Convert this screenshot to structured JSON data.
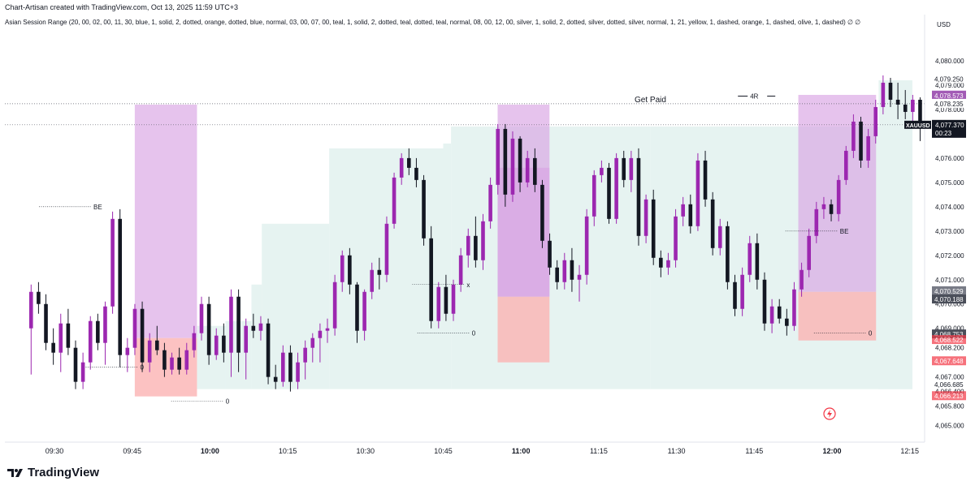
{
  "header": {
    "credit": "Chart-Artisan created with TradingView.com, Oct 13, 2025 11:59 UTC+3"
  },
  "indicator": {
    "text": "Asian Session Range (20, 00, 02, 00, 11, 30, blue, 1, solid, 2, dotted, orange, dotted, blue, normal, 03, 00, 07, 00, teal, 1, solid, 2, dotted, teal, dotted, teal, normal, 08, 00, 12, 00, silver, 1, solid, 2, dotted, silver, dotted, silver, normal, 1, 21, yellow, 1, dashed, orange, 1, dashed, olive, 1, dashed)",
    "icons": "∅ ∅"
  },
  "footer": {
    "brand": "TradingView"
  },
  "colors": {
    "bull": "#9c27b0",
    "bear": "#131722",
    "teal_zone": "#e6f3f1",
    "purple_zone": "#d9a3e3",
    "red_zone": "#fbb3b3",
    "price_tag": "#131722",
    "level_tag": "#f23645",
    "mid_tag": "#a25bb5"
  },
  "chart_data": {
    "type": "candlestick",
    "symbol": "XAUUSD",
    "currency": "USD",
    "countdown": "00:23",
    "x_tick_labels": [
      "09:30",
      "09:45",
      "10:00",
      "10:15",
      "10:30",
      "10:45",
      "11:00",
      "11:15",
      "11:30",
      "11:45",
      "12:00",
      "12:15"
    ],
    "y_tick_labels": [
      "4,080.000",
      "4,079.000",
      "4,078.000",
      "4,076.000",
      "4,075.000",
      "4,074.000",
      "4,073.000",
      "4,072.000",
      "4,071.000",
      "4,070.000",
      "4,069.000",
      "4,068.200",
      "4,067.000",
      "4,066.400",
      "4,065.800",
      "4,065.000"
    ],
    "y_range": [
      4064.6,
      4081.0
    ],
    "x_range_minutes": [
      565,
      740
    ],
    "last_price": 4077.37,
    "price_tags": [
      {
        "label": "4,079.250",
        "price": 4079.25,
        "style": "plain"
      },
      {
        "label": "4,078.573",
        "price": 4078.573,
        "style": "mid"
      },
      {
        "label": "4,078.235",
        "price": 4078.235,
        "style": "plain"
      },
      {
        "label": "4,070.529",
        "price": 4070.529,
        "style": "gray"
      },
      {
        "label": "4,070.188",
        "price": 4070.188,
        "style": "dark"
      },
      {
        "label": "4,068.753",
        "price": 4068.753,
        "style": "dark"
      },
      {
        "label": "4,068.522",
        "price": 4068.522,
        "style": "red"
      },
      {
        "label": "4,067.648",
        "price": 4067.648,
        "style": "red"
      },
      {
        "label": "4,066.685",
        "price": 4066.685,
        "style": "plain"
      },
      {
        "label": "4,066.213",
        "price": 4066.213,
        "style": "red"
      }
    ],
    "h_lines": [
      {
        "price": 4078.235,
        "label": "Get Paid"
      },
      {
        "price": 4077.37,
        "label": ""
      }
    ],
    "annotations": [
      {
        "label": "BE",
        "t": 578,
        "price": 4074.0
      },
      {
        "label": "0",
        "t": 587,
        "price": 4067.4
      },
      {
        "label": "0",
        "t": 603.5,
        "price": 4066.0
      },
      {
        "label": "x",
        "t": 650,
        "price": 4070.8
      },
      {
        "label": "0",
        "t": 651,
        "price": 4068.8
      },
      {
        "label": "BE",
        "t": 722,
        "price": 4073.0
      },
      {
        "label": "0",
        "t": 727.5,
        "price": 4068.8
      },
      {
        "label": "4R",
        "t": 710,
        "price": 4078.55
      }
    ],
    "zones": [
      {
        "kind": "purple",
        "t0": 585.5,
        "t1": 597.5,
        "p0": 4068.6,
        "p1": 4078.2
      },
      {
        "kind": "red",
        "t0": 585.5,
        "t1": 597.5,
        "p0": 4066.2,
        "p1": 4068.6
      },
      {
        "kind": "purple",
        "t0": 655.5,
        "t1": 665.5,
        "p0": 4070.3,
        "p1": 4078.2
      },
      {
        "kind": "purple",
        "t0": 655.5,
        "t1": 665.5,
        "p0": 4070.3,
        "p1": 4075.6
      },
      {
        "kind": "red",
        "t0": 655.5,
        "t1": 665.5,
        "p0": 4067.6,
        "p1": 4070.3
      },
      {
        "kind": "purple",
        "t0": 713.5,
        "t1": 728.5,
        "p0": 4070.5,
        "p1": 4078.6
      },
      {
        "kind": "red",
        "t0": 713.5,
        "t1": 728.5,
        "p0": 4068.5,
        "p1": 4070.5
      }
    ],
    "teal_steps": [
      {
        "t0": 597.5,
        "t1": 603,
        "top": 4069.1
      },
      {
        "t0": 603,
        "t1": 608,
        "top": 4069.3
      },
      {
        "t0": 608,
        "t1": 610,
        "top": 4070.8
      },
      {
        "t0": 610,
        "t1": 623,
        "top": 4073.3
      },
      {
        "t0": 623,
        "t1": 645,
        "top": 4076.4
      },
      {
        "t0": 645,
        "t1": 646.5,
        "top": 4076.6
      },
      {
        "t0": 646.5,
        "t1": 685,
        "top": 4077.3
      },
      {
        "t0": 685,
        "t1": 735.5,
        "top": 4077.3
      },
      {
        "t0": 729,
        "t1": 735.5,
        "top": 4079.2
      }
    ],
    "teal_bottom": 4066.5,
    "candles": [
      {
        "o": 4069.0,
        "h": 4070.8,
        "l": 4067.1,
        "c": 4070.5
      },
      {
        "o": 4070.5,
        "h": 4070.9,
        "l": 4069.6,
        "c": 4070.0
      },
      {
        "o": 4070.0,
        "h": 4070.4,
        "l": 4068.1,
        "c": 4068.4
      },
      {
        "o": 4068.4,
        "h": 4069.0,
        "l": 4067.5,
        "c": 4068.0
      },
      {
        "o": 4068.0,
        "h": 4069.6,
        "l": 4067.2,
        "c": 4069.2
      },
      {
        "o": 4069.2,
        "h": 4069.8,
        "l": 4067.9,
        "c": 4068.2
      },
      {
        "o": 4068.2,
        "h": 4068.5,
        "l": 4066.5,
        "c": 4066.8
      },
      {
        "o": 4066.8,
        "h": 4068.0,
        "l": 4066.5,
        "c": 4067.6
      },
      {
        "o": 4067.6,
        "h": 4069.5,
        "l": 4067.3,
        "c": 4069.3
      },
      {
        "o": 4069.3,
        "h": 4069.6,
        "l": 4068.1,
        "c": 4068.4
      },
      {
        "o": 4068.4,
        "h": 4070.1,
        "l": 4067.5,
        "c": 4069.9
      },
      {
        "o": 4069.9,
        "h": 4073.8,
        "l": 4069.6,
        "c": 4073.5
      },
      {
        "o": 4073.5,
        "h": 4073.9,
        "l": 4067.4,
        "c": 4067.9
      },
      {
        "o": 4067.9,
        "h": 4068.6,
        "l": 4067.2,
        "c": 4068.2
      },
      {
        "o": 4068.2,
        "h": 4070.0,
        "l": 4067.9,
        "c": 4069.8
      },
      {
        "o": 4069.8,
        "h": 4070.1,
        "l": 4067.2,
        "c": 4067.6
      },
      {
        "o": 4067.6,
        "h": 4068.8,
        "l": 4067.2,
        "c": 4068.5
      },
      {
        "o": 4068.5,
        "h": 4069.1,
        "l": 4067.9,
        "c": 4068.1
      },
      {
        "o": 4068.1,
        "h": 4068.4,
        "l": 4067.0,
        "c": 4067.3
      },
      {
        "o": 4067.3,
        "h": 4068.0,
        "l": 4067.1,
        "c": 4067.8
      },
      {
        "o": 4067.8,
        "h": 4068.2,
        "l": 4067.1,
        "c": 4067.3
      },
      {
        "o": 4067.3,
        "h": 4068.4,
        "l": 4067.1,
        "c": 4068.1
      },
      {
        "o": 4068.1,
        "h": 4069.1,
        "l": 4067.8,
        "c": 4068.8
      },
      {
        "o": 4068.8,
        "h": 4070.3,
        "l": 4068.5,
        "c": 4070.0
      },
      {
        "o": 4070.0,
        "h": 4070.3,
        "l": 4067.5,
        "c": 4067.9
      },
      {
        "o": 4067.9,
        "h": 4069.0,
        "l": 4067.7,
        "c": 4068.7
      },
      {
        "o": 4068.7,
        "h": 4069.2,
        "l": 4067.6,
        "c": 4068.0
      },
      {
        "o": 4068.0,
        "h": 4070.6,
        "l": 4067.0,
        "c": 4070.3
      },
      {
        "o": 4070.3,
        "h": 4070.6,
        "l": 4067.2,
        "c": 4068.0
      },
      {
        "o": 4068.0,
        "h": 4069.4,
        "l": 4066.9,
        "c": 4069.1
      },
      {
        "o": 4069.1,
        "h": 4069.6,
        "l": 4068.6,
        "c": 4068.9
      },
      {
        "o": 4068.9,
        "h": 4069.5,
        "l": 4068.5,
        "c": 4069.2
      },
      {
        "o": 4069.2,
        "h": 4069.4,
        "l": 4066.7,
        "c": 4067.0
      },
      {
        "o": 4067.0,
        "h": 4067.5,
        "l": 4066.5,
        "c": 4066.8
      },
      {
        "o": 4066.8,
        "h": 4068.3,
        "l": 4066.6,
        "c": 4068.0
      },
      {
        "o": 4068.0,
        "h": 4068.3,
        "l": 4066.4,
        "c": 4066.8
      },
      {
        "o": 4066.8,
        "h": 4068.0,
        "l": 4066.5,
        "c": 4067.6
      },
      {
        "o": 4067.6,
        "h": 4068.5,
        "l": 4066.9,
        "c": 4068.2
      },
      {
        "o": 4068.2,
        "h": 4068.8,
        "l": 4067.6,
        "c": 4068.6
      },
      {
        "o": 4068.6,
        "h": 4069.2,
        "l": 4067.6,
        "c": 4068.9
      },
      {
        "o": 4068.9,
        "h": 4069.4,
        "l": 4068.4,
        "c": 4069.0
      },
      {
        "o": 4069.0,
        "h": 4071.2,
        "l": 4068.7,
        "c": 4070.9
      },
      {
        "o": 4070.9,
        "h": 4072.2,
        "l": 4070.5,
        "c": 4072.0
      },
      {
        "o": 4072.0,
        "h": 4072.3,
        "l": 4070.4,
        "c": 4070.8
      },
      {
        "o": 4070.8,
        "h": 4070.9,
        "l": 4068.4,
        "c": 4068.9
      },
      {
        "o": 4068.9,
        "h": 4070.6,
        "l": 4068.5,
        "c": 4070.5
      },
      {
        "o": 4070.5,
        "h": 4071.7,
        "l": 4070.2,
        "c": 4071.4
      },
      {
        "o": 4071.4,
        "h": 4071.9,
        "l": 4070.6,
        "c": 4071.2
      },
      {
        "o": 4071.2,
        "h": 4073.6,
        "l": 4070.9,
        "c": 4073.3
      },
      {
        "o": 4073.3,
        "h": 4075.4,
        "l": 4073.1,
        "c": 4075.2
      },
      {
        "o": 4075.2,
        "h": 4076.2,
        "l": 4074.9,
        "c": 4076.0
      },
      {
        "o": 4076.0,
        "h": 4076.4,
        "l": 4075.3,
        "c": 4075.6
      },
      {
        "o": 4075.6,
        "h": 4076.0,
        "l": 4074.8,
        "c": 4075.1
      },
      {
        "o": 4075.1,
        "h": 4075.3,
        "l": 4072.4,
        "c": 4072.7
      },
      {
        "o": 4072.7,
        "h": 4073.2,
        "l": 4069.0,
        "c": 4069.3
      },
      {
        "o": 4069.3,
        "h": 4070.9,
        "l": 4069.0,
        "c": 4070.7
      },
      {
        "o": 4070.7,
        "h": 4071.2,
        "l": 4069.3,
        "c": 4069.6
      },
      {
        "o": 4069.6,
        "h": 4071.0,
        "l": 4069.3,
        "c": 4070.8
      },
      {
        "o": 4070.8,
        "h": 4072.3,
        "l": 4070.5,
        "c": 4072.0
      },
      {
        "o": 4072.0,
        "h": 4073.1,
        "l": 4071.5,
        "c": 4072.8
      },
      {
        "o": 4072.8,
        "h": 4073.6,
        "l": 4071.5,
        "c": 4071.8
      },
      {
        "o": 4071.8,
        "h": 4073.7,
        "l": 4071.4,
        "c": 4073.4
      },
      {
        "o": 4073.4,
        "h": 4075.2,
        "l": 4073.1,
        "c": 4074.9
      },
      {
        "o": 4074.9,
        "h": 4077.4,
        "l": 4074.5,
        "c": 4077.2
      },
      {
        "o": 4077.2,
        "h": 4077.4,
        "l": 4074.0,
        "c": 4074.5
      },
      {
        "o": 4074.5,
        "h": 4077.1,
        "l": 4074.2,
        "c": 4076.8
      },
      {
        "o": 4076.8,
        "h": 4076.9,
        "l": 4074.6,
        "c": 4075.0
      },
      {
        "o": 4075.0,
        "h": 4076.3,
        "l": 4074.8,
        "c": 4076.0
      },
      {
        "o": 4076.0,
        "h": 4076.4,
        "l": 4074.6,
        "c": 4074.9
      },
      {
        "o": 4074.9,
        "h": 4075.1,
        "l": 4072.3,
        "c": 4072.6
      },
      {
        "o": 4072.6,
        "h": 4072.9,
        "l": 4071.2,
        "c": 4071.5
      },
      {
        "o": 4071.5,
        "h": 4071.8,
        "l": 4070.6,
        "c": 4070.9
      },
      {
        "o": 4070.9,
        "h": 4072.1,
        "l": 4070.6,
        "c": 4071.8
      },
      {
        "o": 4071.8,
        "h": 4072.3,
        "l": 4070.5,
        "c": 4071.0
      },
      {
        "o": 4071.0,
        "h": 4071.6,
        "l": 4070.1,
        "c": 4071.2
      },
      {
        "o": 4071.2,
        "h": 4073.9,
        "l": 4070.8,
        "c": 4073.6
      },
      {
        "o": 4073.6,
        "h": 4075.5,
        "l": 4073.2,
        "c": 4075.3
      },
      {
        "o": 4075.3,
        "h": 4075.9,
        "l": 4075.0,
        "c": 4075.6
      },
      {
        "o": 4075.6,
        "h": 4075.8,
        "l": 4073.3,
        "c": 4073.5
      },
      {
        "o": 4073.5,
        "h": 4076.2,
        "l": 4073.3,
        "c": 4076.0
      },
      {
        "o": 4076.0,
        "h": 4076.3,
        "l": 4074.8,
        "c": 4075.1
      },
      {
        "o": 4075.1,
        "h": 4076.3,
        "l": 4074.6,
        "c": 4076.0
      },
      {
        "o": 4076.0,
        "h": 4076.4,
        "l": 4072.4,
        "c": 4072.8
      },
      {
        "o": 4072.8,
        "h": 4074.5,
        "l": 4072.5,
        "c": 4074.3
      },
      {
        "o": 4074.3,
        "h": 4074.7,
        "l": 4071.6,
        "c": 4071.9
      },
      {
        "o": 4071.9,
        "h": 4072.2,
        "l": 4071.1,
        "c": 4071.5
      },
      {
        "o": 4071.5,
        "h": 4072.1,
        "l": 4071.2,
        "c": 4071.8
      },
      {
        "o": 4071.8,
        "h": 4073.9,
        "l": 4071.5,
        "c": 4073.6
      },
      {
        "o": 4073.6,
        "h": 4074.4,
        "l": 4073.2,
        "c": 4074.1
      },
      {
        "o": 4074.1,
        "h": 4074.5,
        "l": 4072.9,
        "c": 4073.2
      },
      {
        "o": 4073.2,
        "h": 4076.2,
        "l": 4073.0,
        "c": 4075.9
      },
      {
        "o": 4075.9,
        "h": 4076.3,
        "l": 4074.0,
        "c": 4074.3
      },
      {
        "o": 4074.3,
        "h": 4074.6,
        "l": 4072.0,
        "c": 4072.3
      },
      {
        "o": 4072.3,
        "h": 4073.5,
        "l": 4072.0,
        "c": 4073.2
      },
      {
        "o": 4073.2,
        "h": 4073.4,
        "l": 4070.6,
        "c": 4070.9
      },
      {
        "o": 4070.9,
        "h": 4071.2,
        "l": 4069.5,
        "c": 4069.8
      },
      {
        "o": 4069.8,
        "h": 4071.5,
        "l": 4069.5,
        "c": 4071.2
      },
      {
        "o": 4071.2,
        "h": 4072.8,
        "l": 4070.9,
        "c": 4072.5
      },
      {
        "o": 4072.5,
        "h": 4072.9,
        "l": 4070.6,
        "c": 4071.0
      },
      {
        "o": 4071.0,
        "h": 4071.3,
        "l": 4068.9,
        "c": 4069.2
      },
      {
        "o": 4069.2,
        "h": 4070.2,
        "l": 4068.8,
        "c": 4069.9
      },
      {
        "o": 4069.9,
        "h": 4070.2,
        "l": 4069.2,
        "c": 4069.4
      },
      {
        "o": 4069.4,
        "h": 4069.8,
        "l": 4068.7,
        "c": 4069.1
      },
      {
        "o": 4069.1,
        "h": 4070.9,
        "l": 4068.9,
        "c": 4070.6
      },
      {
        "o": 4070.6,
        "h": 4071.7,
        "l": 4070.3,
        "c": 4071.4
      },
      {
        "o": 4071.4,
        "h": 4073.1,
        "l": 4071.1,
        "c": 4072.8
      },
      {
        "o": 4072.8,
        "h": 4074.2,
        "l": 4072.5,
        "c": 4073.9
      },
      {
        "o": 4073.9,
        "h": 4074.4,
        "l": 4073.5,
        "c": 4074.1
      },
      {
        "o": 4074.1,
        "h": 4074.3,
        "l": 4073.4,
        "c": 4073.7
      },
      {
        "o": 4073.7,
        "h": 4075.3,
        "l": 4073.4,
        "c": 4075.1
      },
      {
        "o": 4075.1,
        "h": 4076.5,
        "l": 4074.9,
        "c": 4076.3
      },
      {
        "o": 4076.3,
        "h": 4077.8,
        "l": 4076.0,
        "c": 4077.5
      },
      {
        "o": 4077.5,
        "h": 4077.7,
        "l": 4075.6,
        "c": 4075.9
      },
      {
        "o": 4075.9,
        "h": 4077.2,
        "l": 4075.6,
        "c": 4076.9
      },
      {
        "o": 4076.9,
        "h": 4078.4,
        "l": 4076.6,
        "c": 4078.1
      },
      {
        "o": 4078.1,
        "h": 4079.4,
        "l": 4077.8,
        "c": 4079.1
      },
      {
        "o": 4079.1,
        "h": 4079.3,
        "l": 4078.1,
        "c": 4078.4
      },
      {
        "o": 4078.4,
        "h": 4079.1,
        "l": 4077.6,
        "c": 4078.2
      },
      {
        "o": 4078.2,
        "h": 4078.8,
        "l": 4077.6,
        "c": 4077.9
      },
      {
        "o": 4077.9,
        "h": 4078.6,
        "l": 4077.5,
        "c": 4078.4
      },
      {
        "o": 4078.4,
        "h": 4078.5,
        "l": 4076.7,
        "c": 4077.37
      }
    ]
  }
}
